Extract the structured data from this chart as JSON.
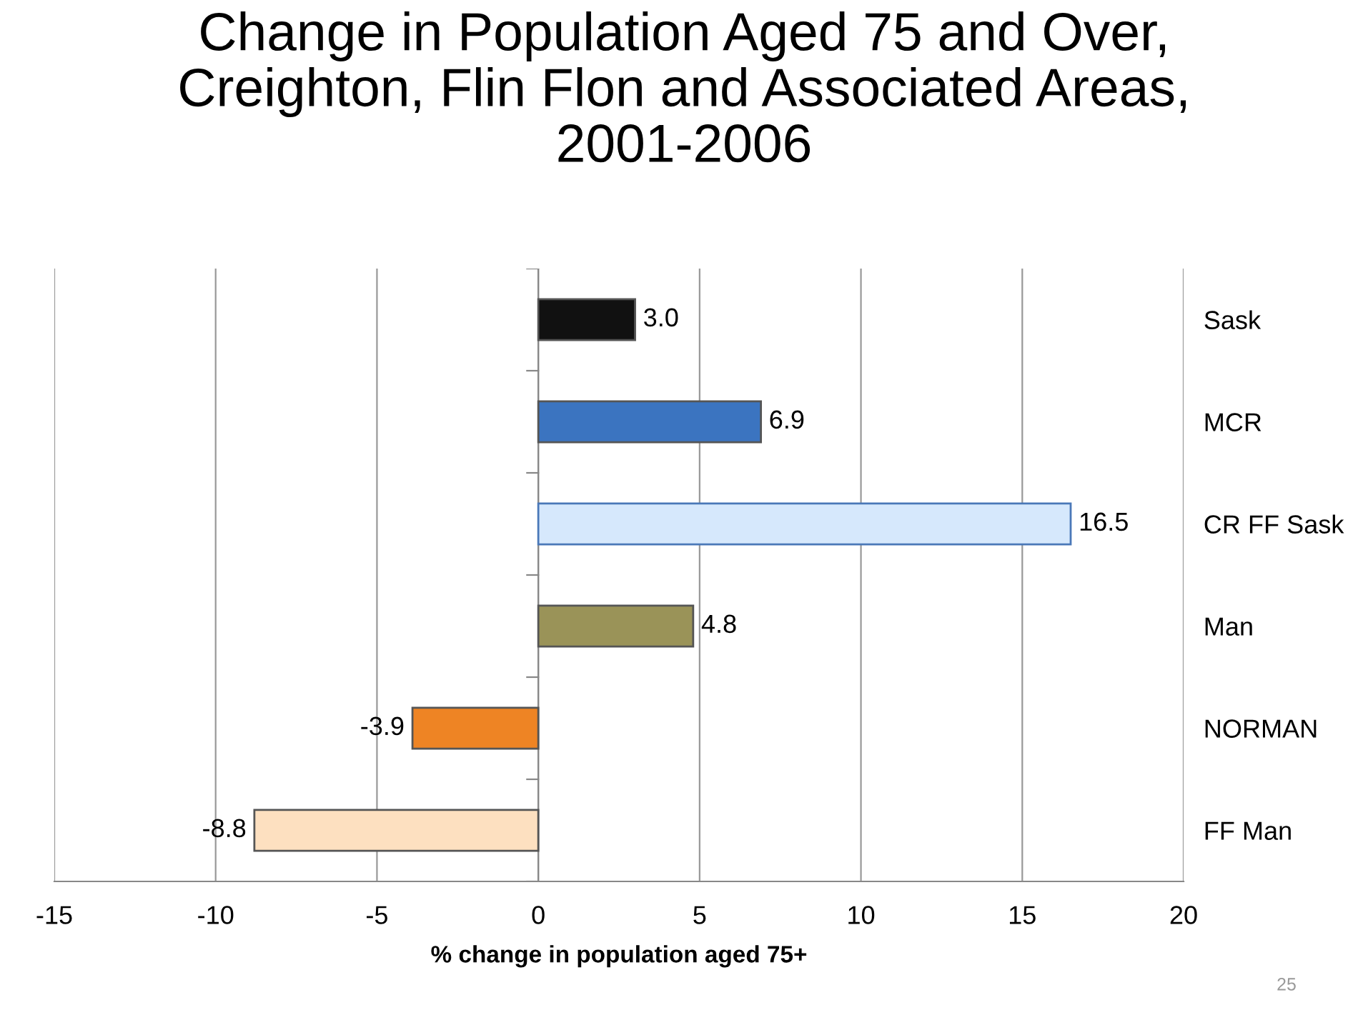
{
  "chart_data": {
    "type": "bar",
    "orientation": "horizontal",
    "title": "Change in Population Aged 75 and Over,\nCreighton, Flin Flon and Associated Areas,\n2001-2006",
    "xlabel": "% change in population aged 75+",
    "categories": [
      "Sask",
      "MCR",
      "CR FF Sask",
      "Man",
      "NORMAN",
      "FF Man"
    ],
    "values": [
      3.0,
      6.9,
      16.5,
      4.8,
      -3.9,
      -8.8
    ],
    "colors": [
      "#111111",
      "#3b74c0",
      "#d6e8fc",
      "#9a9358",
      "#ee8424",
      "#fde0c0"
    ],
    "value_labels": [
      "3.0",
      "6.9",
      "16.5",
      "4.8",
      "-3.9",
      "-8.8"
    ],
    "xlim": [
      -15,
      20
    ],
    "xticks": [
      -15,
      -10,
      -5,
      0,
      5,
      10,
      15,
      20
    ],
    "grid": "x",
    "annotations": [
      "25"
    ]
  }
}
